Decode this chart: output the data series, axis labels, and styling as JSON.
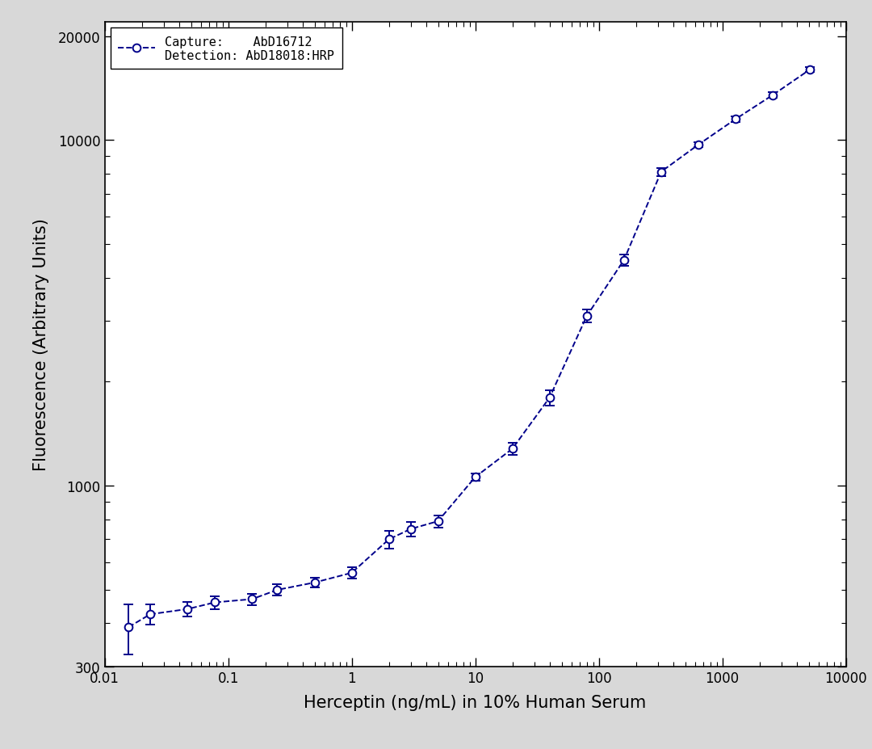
{
  "x": [
    0.0156,
    0.0234,
    0.0469,
    0.0781,
    0.156,
    0.25,
    0.5,
    1.0,
    2.0,
    3.0,
    5.0,
    10.0,
    20.0,
    40.0,
    80.0,
    160.0,
    320.0,
    640.0,
    1280.0,
    2560.0,
    5120.0
  ],
  "y": [
    390,
    425,
    440,
    460,
    470,
    500,
    525,
    560,
    700,
    750,
    790,
    1060,
    1280,
    1800,
    3100,
    4500,
    8100,
    9700,
    11500,
    13500,
    16000
  ],
  "y_err": [
    65,
    28,
    22,
    20,
    18,
    18,
    18,
    22,
    42,
    35,
    32,
    28,
    55,
    90,
    130,
    175,
    220,
    175,
    210,
    260,
    260
  ],
  "line_color": "#00008B",
  "marker_face": "white",
  "marker_size": 7,
  "line_width": 1.4,
  "xlim": [
    0.01,
    10000
  ],
  "ylim": [
    300,
    22000
  ],
  "xlabel": "Herceptin (ng/mL) in 10% Human Serum",
  "ylabel": "Fluorescence (Arbitrary Units)",
  "legend_line1": "Capture:    AbD16712",
  "legend_line2": "Detection: AbD18018:HRP",
  "outer_bg": "#d8d8d8",
  "plot_bg": "#ffffff",
  "label_fontsize": 15,
  "tick_fontsize": 12,
  "legend_fontsize": 11,
  "x_ticks": [
    0.01,
    0.1,
    1,
    10,
    100,
    1000,
    10000
  ],
  "x_tick_labels": [
    "0.01",
    "0.1",
    "1",
    "10",
    "100",
    "1000",
    "10000"
  ],
  "y_ticks": [
    300,
    1000,
    10000,
    20000
  ],
  "y_tick_labels": [
    "300",
    "1000",
    "10000",
    "20000"
  ]
}
